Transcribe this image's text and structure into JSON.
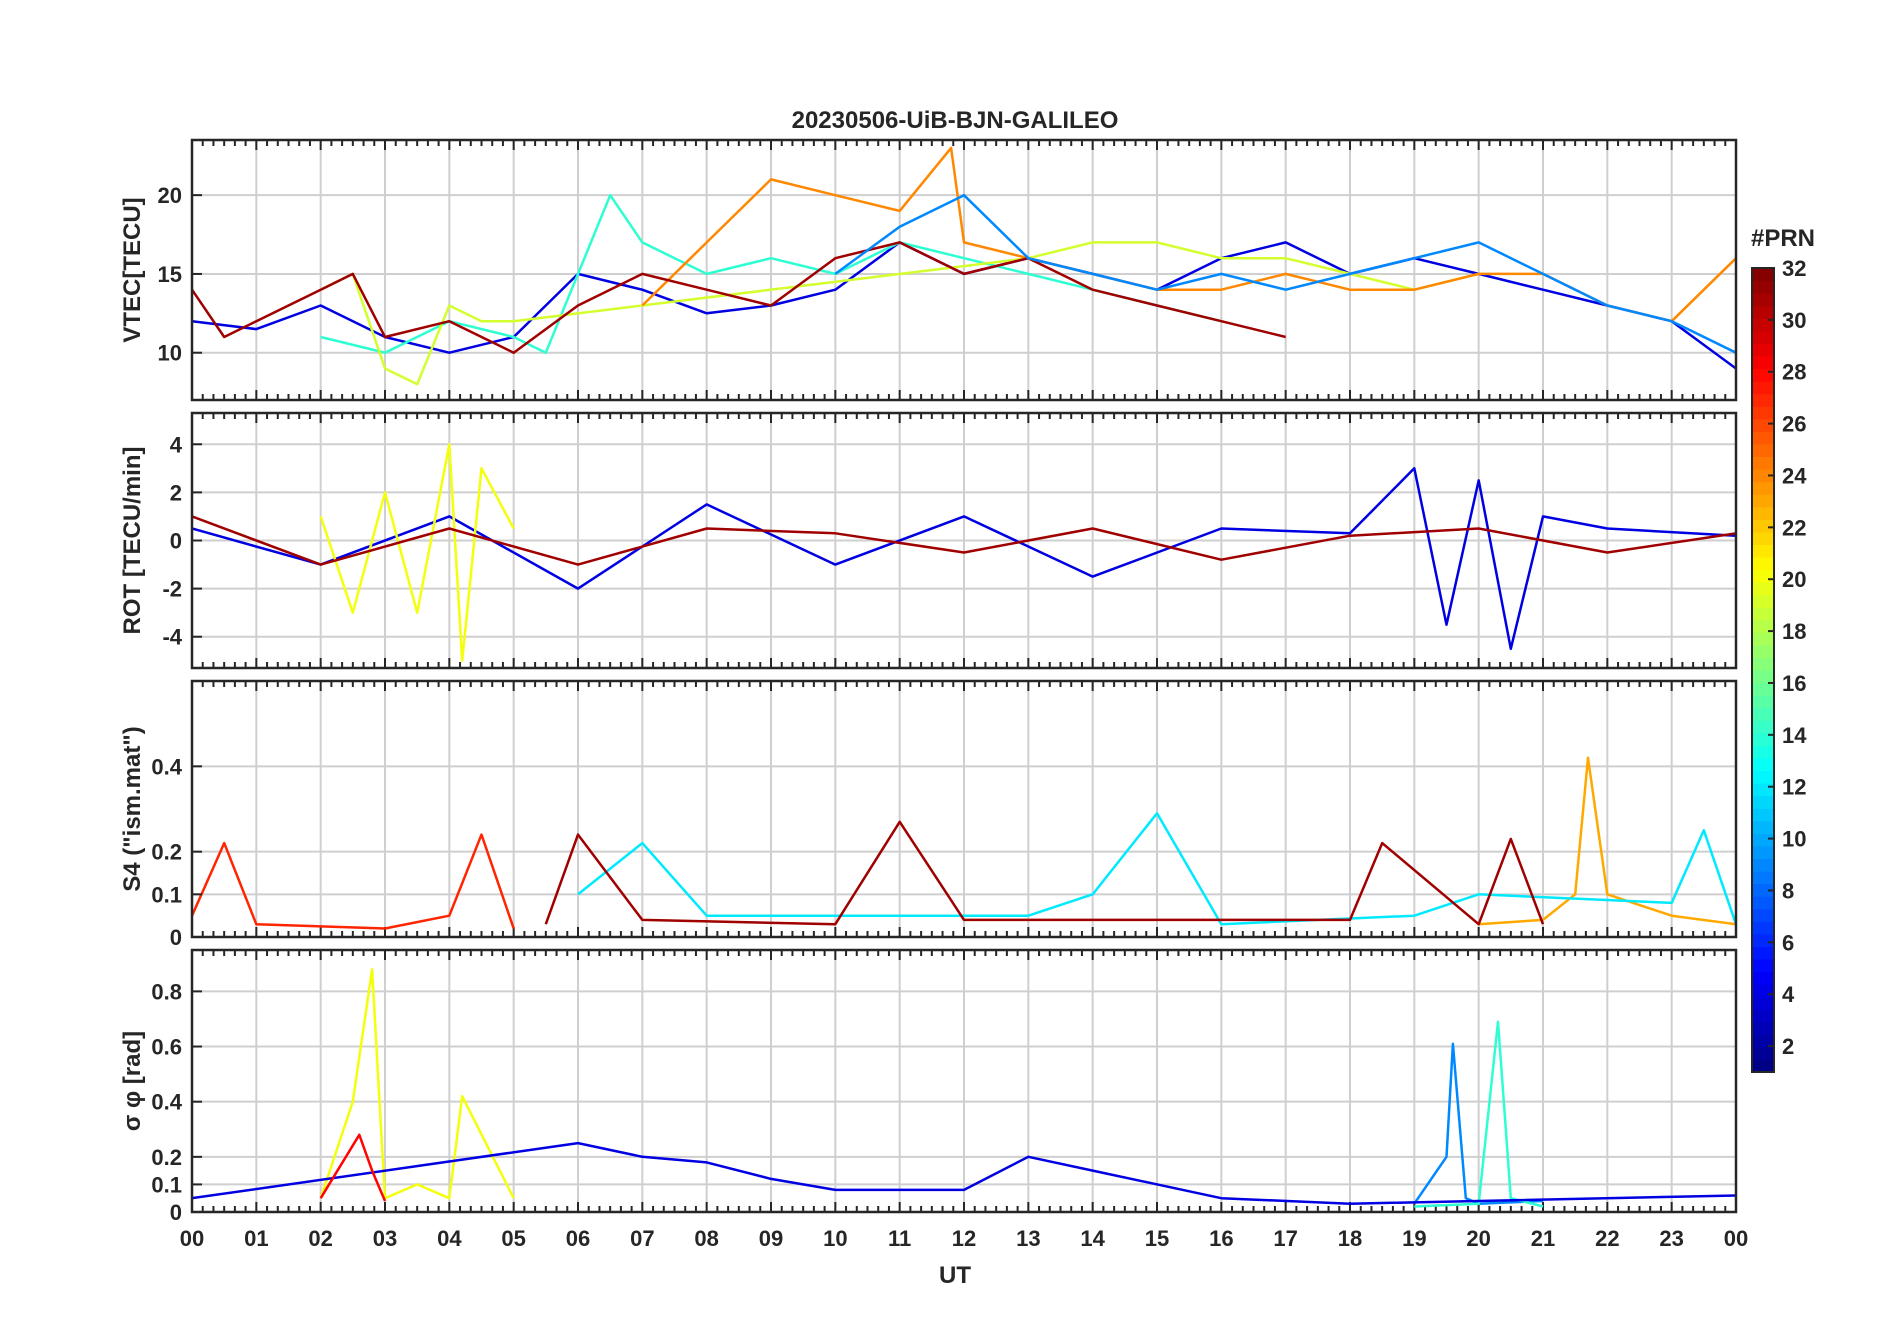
{
  "chart_data": {
    "type": "line",
    "title": "20230506-UiB-BJN-GALILEO",
    "xlabel": "UT",
    "x_ticks": [
      "00",
      "01",
      "02",
      "03",
      "04",
      "05",
      "06",
      "07",
      "08",
      "09",
      "10",
      "11",
      "12",
      "13",
      "14",
      "15",
      "16",
      "17",
      "18",
      "19",
      "20",
      "21",
      "22",
      "23",
      "00"
    ],
    "xlim": [
      0,
      24
    ],
    "grid": true,
    "colorbar": {
      "label": "#PRN",
      "colormap": "jet",
      "range": [
        1,
        32
      ],
      "ticks": [
        "2",
        "4",
        "6",
        "8",
        "10",
        "12",
        "14",
        "16",
        "18",
        "20",
        "22",
        "24",
        "26",
        "28",
        "30",
        "32"
      ]
    },
    "panels": [
      {
        "ylabel": "VTEC[TECU]",
        "ylim": [
          7,
          23.5
        ],
        "yticks": [
          "10",
          "15",
          "20"
        ],
        "yticks_values": [
          10,
          15,
          20
        ],
        "series": [
          {
            "prn": 4,
            "x": [
              0,
              1,
              2,
              3,
              4,
              5,
              6,
              7,
              8,
              9,
              10,
              11,
              12,
              13,
              14,
              15,
              16,
              17,
              18,
              19,
              20,
              21,
              22,
              23,
              24
            ],
            "y": [
              12,
              11.5,
              13,
              11,
              10,
              11,
              15,
              14,
              12.5,
              13,
              14,
              17,
              15,
              16,
              15,
              14,
              16,
              17,
              15,
              16,
              15,
              14,
              13,
              12,
              9
            ]
          },
          {
            "prn": 14,
            "x": [
              2,
              3,
              4,
              5,
              5.5,
              6,
              6.5,
              7,
              8,
              9,
              10,
              11,
              12,
              13,
              14,
              15,
              16
            ],
            "y": [
              11,
              10,
              12,
              11,
              10,
              15,
              20,
              17,
              15,
              16,
              15,
              17,
              16,
              15,
              14,
              13,
              12
            ]
          },
          {
            "prn": 19,
            "x": [
              2,
              2.5,
              3,
              3.5,
              4,
              4.5,
              5,
              13,
              14,
              15,
              16,
              17,
              18,
              19,
              20
            ],
            "y": [
              14,
              15,
              9,
              8,
              13,
              12,
              12,
              16,
              17,
              17,
              16,
              16,
              15,
              14,
              15
            ]
          },
          {
            "prn": 24,
            "x": [
              7,
              8,
              9,
              10,
              11,
              11.8,
              12,
              13,
              14,
              15,
              16,
              17,
              18,
              19,
              20,
              21,
              22,
              23,
              24
            ],
            "y": [
              13,
              17,
              21,
              20,
              19,
              23,
              17,
              16,
              15,
              14,
              14,
              15,
              14,
              14,
              15,
              15,
              13,
              12,
              16
            ]
          },
          {
            "prn": 31,
            "x": [
              0,
              0.5,
              1,
              2,
              2.5,
              3,
              4,
              5,
              6,
              7,
              8,
              9,
              10,
              11,
              12,
              13,
              14,
              15,
              16,
              17
            ],
            "y": [
              14,
              11,
              12,
              14,
              15,
              11,
              12,
              10,
              13,
              15,
              14,
              13,
              16,
              17,
              15,
              16,
              14,
              13,
              12,
              11
            ]
          },
          {
            "prn": 9,
            "x": [
              10,
              11,
              12,
              13,
              14,
              15,
              16,
              17,
              18,
              19,
              20,
              21,
              22,
              23,
              24
            ],
            "y": [
              15,
              18,
              20,
              16,
              15,
              14,
              15,
              14,
              15,
              16,
              17,
              15,
              13,
              12,
              10
            ]
          }
        ]
      },
      {
        "ylabel": "ROT [TECU/min]",
        "ylim": [
          -5.3,
          5.3
        ],
        "yticks": [
          "-4",
          "-2",
          "0",
          "2",
          "4"
        ],
        "yticks_values": [
          -4,
          -2,
          0,
          2,
          4
        ],
        "series": [
          {
            "prn": 4,
            "x": [
              0,
              2,
              4,
              6,
              8,
              10,
              12,
              14,
              16,
              18,
              19,
              19.5,
              20,
              20.5,
              21,
              22,
              24
            ],
            "y": [
              0.5,
              -1,
              1,
              -2,
              1.5,
              -1,
              1,
              -1.5,
              0.5,
              0.3,
              3,
              -3.5,
              2.5,
              -4.5,
              1,
              0.5,
              0.2
            ]
          },
          {
            "prn": 20,
            "x": [
              2,
              2.5,
              3,
              3.5,
              4,
              4.2,
              4.5,
              5
            ],
            "y": [
              1,
              -3,
              2,
              -3,
              4,
              -5,
              3,
              0.5
            ]
          },
          {
            "prn": 31,
            "x": [
              0,
              2,
              4,
              6,
              8,
              10,
              12,
              14,
              16,
              18,
              20,
              22,
              24
            ],
            "y": [
              1,
              -1,
              0.5,
              -1,
              0.5,
              0.3,
              -0.5,
              0.5,
              -0.8,
              0.2,
              0.5,
              -0.5,
              0.3
            ]
          }
        ]
      },
      {
        "ylabel": "S4 (\"ism.mat\")",
        "ylim": [
          0,
          0.6
        ],
        "yticks": [
          "0",
          "0.1",
          "0.2",
          "0.4"
        ],
        "yticks_values": [
          0,
          0.1,
          0.2,
          0.4
        ],
        "series": [
          {
            "prn": 27,
            "x": [
              0,
              0.5,
              1,
              3,
              4,
              4.5,
              5
            ],
            "y": [
              0.05,
              0.22,
              0.03,
              0.02,
              0.05,
              0.24,
              0.02
            ]
          },
          {
            "prn": 23,
            "x": [
              20,
              21,
              21.5,
              21.7,
              22,
              23,
              24
            ],
            "y": [
              0.03,
              0.04,
              0.1,
              0.42,
              0.1,
              0.05,
              0.03
            ]
          },
          {
            "prn": 12,
            "x": [
              6,
              7,
              8,
              13,
              14,
              15,
              16,
              19,
              20,
              23,
              23.5,
              24
            ],
            "y": [
              0.1,
              0.22,
              0.05,
              0.05,
              0.1,
              0.29,
              0.03,
              0.05,
              0.1,
              0.08,
              0.25,
              0.03
            ]
          },
          {
            "prn": 31,
            "x": [
              5.5,
              6,
              7,
              10,
              11,
              12,
              18,
              18.5,
              20,
              20.5,
              21
            ],
            "y": [
              0.03,
              0.24,
              0.04,
              0.03,
              0.27,
              0.04,
              0.04,
              0.22,
              0.03,
              0.23,
              0.03
            ]
          }
        ]
      },
      {
        "ylabel": "σ φ [rad]",
        "ylim": [
          0,
          0.95
        ],
        "yticks": [
          "0",
          "0.1",
          "0.2",
          "0.4",
          "0.6",
          "0.8"
        ],
        "yticks_values": [
          0,
          0.1,
          0.2,
          0.4,
          0.6,
          0.8
        ],
        "series": [
          {
            "prn": 20,
            "x": [
              2,
              2.5,
              2.8,
              3,
              3.5,
              4,
              4.2,
              5
            ],
            "y": [
              0.05,
              0.4,
              0.88,
              0.05,
              0.1,
              0.05,
              0.42,
              0.05
            ]
          },
          {
            "prn": 9,
            "x": [
              19,
              19.5,
              19.6,
              19.8,
              20,
              21
            ],
            "y": [
              0.03,
              0.2,
              0.61,
              0.05,
              0.03,
              0.04
            ]
          },
          {
            "prn": 14,
            "x": [
              19,
              20,
              20.3,
              20.5,
              21
            ],
            "y": [
              0.02,
              0.03,
              0.69,
              0.05,
              0.02
            ]
          },
          {
            "prn": 4,
            "x": [
              0,
              6,
              7,
              8,
              9,
              10,
              12,
              13,
              14,
              16,
              18,
              24
            ],
            "y": [
              0.05,
              0.25,
              0.2,
              0.18,
              0.12,
              0.08,
              0.08,
              0.2,
              0.15,
              0.05,
              0.03,
              0.06
            ]
          },
          {
            "prn": 28,
            "x": [
              2,
              2.6,
              2.8,
              3
            ],
            "y": [
              0.05,
              0.28,
              0.15,
              0.04
            ]
          }
        ]
      }
    ]
  }
}
